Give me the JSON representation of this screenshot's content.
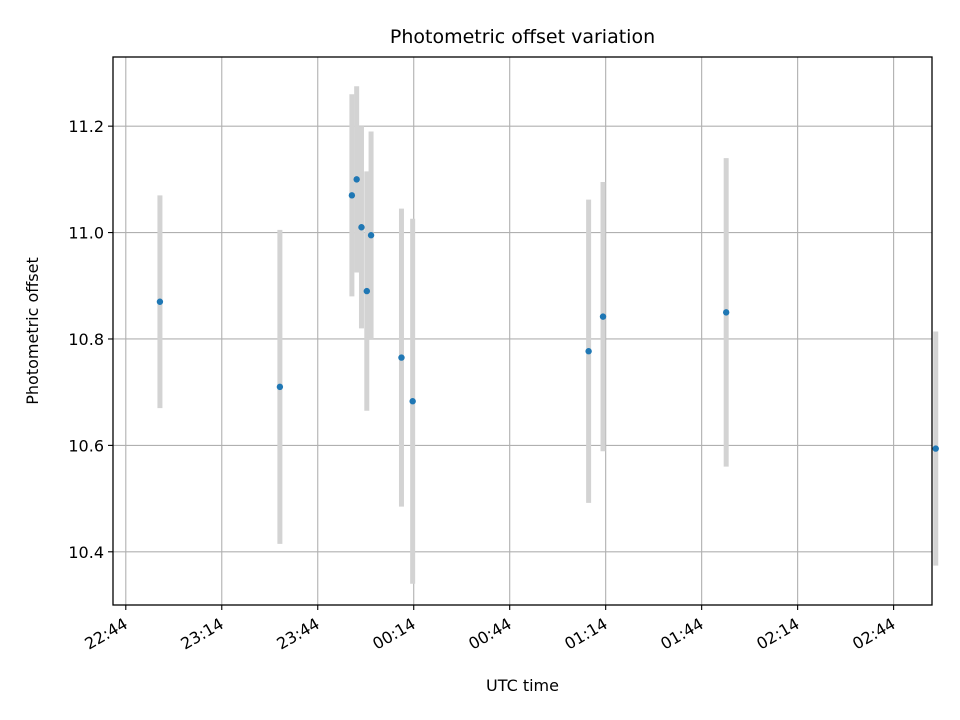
{
  "chart_data": {
    "type": "scatter",
    "title": "Photometric offset variation",
    "xlabel": "UTC time",
    "ylabel": "Photometric offset",
    "x_unit": "time (HH:MM, UTC)",
    "xlim": [
      "22:40",
      "02:56"
    ],
    "ylim": [
      10.3,
      11.33
    ],
    "x_ticks": [
      "22:44",
      "23:14",
      "23:44",
      "00:14",
      "00:44",
      "01:14",
      "01:44",
      "02:14",
      "02:44"
    ],
    "y_ticks": [
      "10.4",
      "10.6",
      "10.8",
      "11.0",
      "11.2"
    ],
    "grid": true,
    "series": [
      {
        "color": "#1f77b4",
        "error_bar_color": "#d3d3d3",
        "points": [
          {
            "x": "22:54:40",
            "y": 10.87,
            "err": 0.2
          },
          {
            "x": "23:32:10",
            "y": 10.71,
            "err": 0.295
          },
          {
            "x": "23:54:40",
            "y": 11.07,
            "err": 0.19
          },
          {
            "x": "23:56:10",
            "y": 11.1,
            "err": 0.175
          },
          {
            "x": "23:57:40",
            "y": 11.01,
            "err": 0.19
          },
          {
            "x": "23:59:20",
            "y": 10.89,
            "err": 0.225
          },
          {
            "x": "00:00:40",
            "y": 10.995,
            "err": 0.195
          },
          {
            "x": "00:10:10",
            "y": 10.765,
            "err": 0.28
          },
          {
            "x": "00:13:40",
            "y": 10.683,
            "err": 0.343
          },
          {
            "x": "01:08:40",
            "y": 10.777,
            "err": 0.285
          },
          {
            "x": "01:13:10",
            "y": 10.842,
            "err": 0.253
          },
          {
            "x": "01:51:40",
            "y": 10.85,
            "err": 0.29
          },
          {
            "x": "02:57:10",
            "y": 10.594,
            "err": 0.22
          }
        ]
      }
    ]
  }
}
